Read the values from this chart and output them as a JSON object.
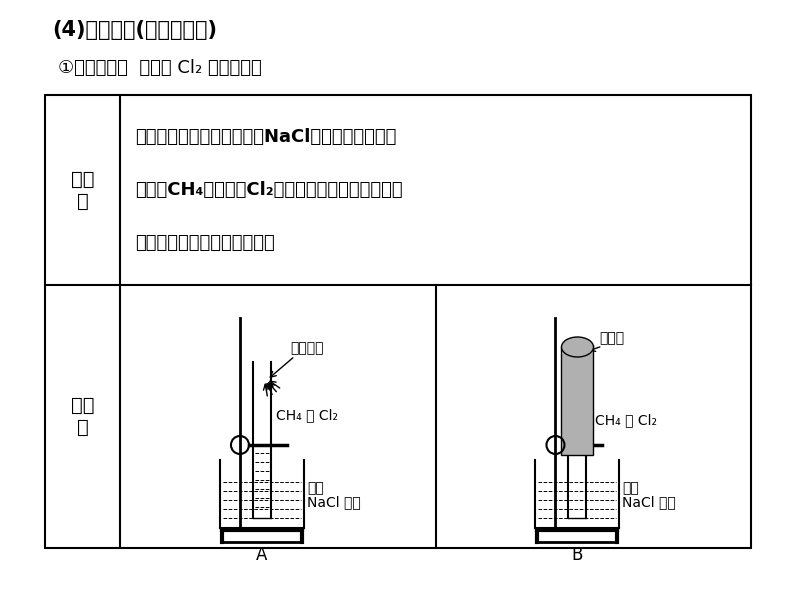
{
  "bg_color": "#ffffff",
  "title1": "(4)取代反应(以甲烷为例)",
  "title2": "①实验探究：  甲烷与 Cl₂ 的取代反应",
  "row1_header": "实验\n作",
  "row2_header": "实验\n置",
  "row1_line1": "取两支试管，均通过排饥和NaCl溶液的方法，收集",
  "row1_line2": "半试管CH₄和半试管Cl₂。将其中一支试管用铝箔套",
  "row1_line3": "套上，另一支试管放在光亮处",
  "label_A_sunray": "漫散日光",
  "label_A_gas": "CH₄ 和 Cl₂",
  "label_A_liq1": "饱和",
  "label_A_liq2": "NaCl 溶液",
  "label_A": "A",
  "label_B_foil": "铝箔套",
  "label_B_gas": "CH₄ 和 Cl₂",
  "label_B_liq1": "饱和",
  "label_B_liq2": "NaCl 溶液",
  "label_B": "B"
}
